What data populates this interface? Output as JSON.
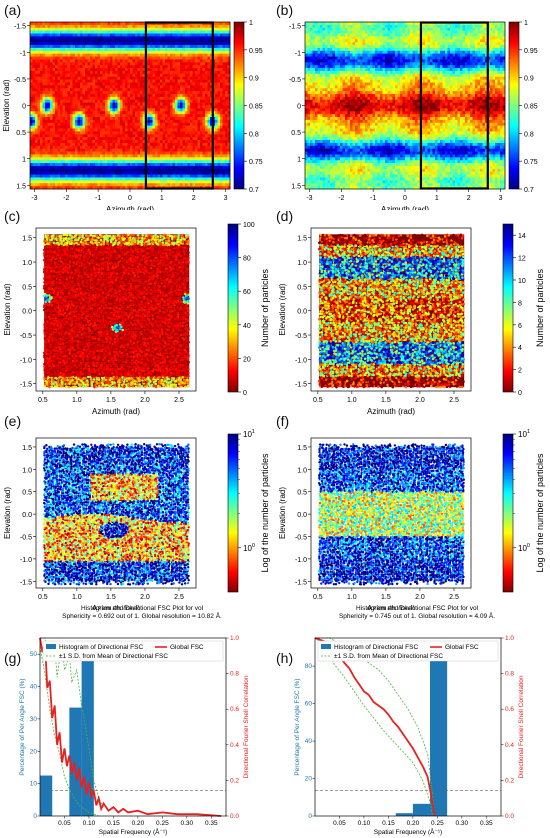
{
  "figure_labels": [
    "(a)",
    "(b)",
    "(c)",
    "(d)",
    "(e)",
    "(f)",
    "(g)",
    "(h)"
  ],
  "colors": {
    "jet": [
      "#00007f",
      "#0000ff",
      "#007fff",
      "#00ffff",
      "#7fff7f",
      "#ffff00",
      "#ff7f00",
      "#ff0000",
      "#7f0000"
    ],
    "jet_r": [
      "#7f0000",
      "#ff0000",
      "#ff7f00",
      "#ffff00",
      "#7fff7f",
      "#00ffff",
      "#007fff",
      "#0000ff",
      "#00007f"
    ],
    "hist_bar": "#1f77b4",
    "global_fsc": "#e8211f",
    "sd_line": "#49b33a",
    "frame": "#000000"
  },
  "chart_data": [
    {
      "id": "a",
      "type": "heatmap",
      "xlabel": "Azimuth (rad)",
      "ylabel": "Elevation (rad)",
      "xlim": [
        -3.14,
        3.14
      ],
      "ylim": [
        -1.57,
        1.57
      ],
      "y_inverted": true,
      "xticks": [
        "-3",
        "-2",
        "-1",
        "0",
        "1",
        "2",
        "3"
      ],
      "yticks": [
        "-1.5",
        "-1",
        "-0.5",
        "0",
        "0.5",
        "1",
        "1.5"
      ],
      "colorbar": {
        "range": [
          0.7,
          1.0
        ],
        "ticks": [
          "0.7",
          "0.75",
          "0.8",
          "0.85",
          "0.9",
          "0.95",
          "1"
        ],
        "colormap": "jet"
      },
      "highlight_box": {
        "x": [
          0.5,
          2.6
        ],
        "y": [
          -1.57,
          1.57
        ]
      }
    },
    {
      "id": "b",
      "type": "heatmap",
      "xlabel": "Azimuth (rad)",
      "ylabel": "",
      "xlim": [
        -3.14,
        3.14
      ],
      "ylim": [
        -1.57,
        1.57
      ],
      "y_inverted": true,
      "xticks": [
        "-3",
        "-2",
        "-1",
        "0",
        "1",
        "2",
        "3"
      ],
      "yticks": [
        "-1.5",
        "-1",
        "-0.5",
        "0",
        "0.5",
        "1",
        "1.5"
      ],
      "colorbar": {
        "range": [
          0.7,
          1.0
        ],
        "ticks": [
          "0.7",
          "0.75",
          "0.8",
          "0.85",
          "0.9",
          "0.95",
          "1"
        ],
        "colormap": "jet"
      },
      "highlight_box": {
        "x": [
          0.5,
          2.6
        ],
        "y": [
          -1.57,
          1.57
        ]
      }
    },
    {
      "id": "c",
      "type": "scatter",
      "xlabel": "Azimuth (rad)",
      "ylabel": "Elevation (rad)",
      "xlim": [
        0.4,
        2.75
      ],
      "ylim": [
        -1.65,
        1.7
      ],
      "xticks": [
        "0.5",
        "1.0",
        "1.5",
        "2.0",
        "2.5"
      ],
      "yticks": [
        "-1.5",
        "-1.0",
        "-0.5",
        "0.0",
        "0.5",
        "1.0",
        "1.5"
      ],
      "colorbar": {
        "range": [
          0,
          100
        ],
        "ticks": [
          "0",
          "20",
          "40",
          "60",
          "80",
          "100"
        ],
        "label": "Number of particles",
        "colormap": "jet_r"
      }
    },
    {
      "id": "d",
      "type": "scatter",
      "xlabel": "Azimuth (rad)",
      "ylabel": "Elevation (rad)",
      "xlim": [
        0.4,
        2.75
      ],
      "ylim": [
        -1.65,
        1.7
      ],
      "xticks": [
        "0.5",
        "1.0",
        "1.5",
        "2.0",
        "2.5"
      ],
      "yticks": [
        "-1.5",
        "-1.0",
        "-0.5",
        "0.0",
        "0.5",
        "1.0",
        "1.5"
      ],
      "colorbar": {
        "range": [
          0,
          15
        ],
        "ticks": [
          "0",
          "2",
          "4",
          "6",
          "8",
          "10",
          "12",
          "14"
        ],
        "label": "Number of particles",
        "colormap": "jet_r"
      }
    },
    {
      "id": "e",
      "type": "scatter",
      "xlabel": "Azimuth (rad)",
      "ylabel": "Elevation (rad)",
      "xlim": [
        0.4,
        2.75
      ],
      "ylim": [
        -1.65,
        1.7
      ],
      "xticks": [
        "0.5",
        "1.0",
        "1.5",
        "2.0",
        "2.5"
      ],
      "yticks": [
        "-1.5",
        "-1.0",
        "-0.5",
        "0.0",
        "0.5",
        "1.0",
        "1.5"
      ],
      "colorbar": {
        "scale": "log",
        "ticks": [
          "10",
          "10"
        ],
        "tick_exponents": [
          "0",
          "1"
        ],
        "label": "Log of the number of particles",
        "colormap": "jet_r"
      }
    },
    {
      "id": "f",
      "type": "scatter",
      "xlabel": "Azimuth (rad)",
      "ylabel": "Elevation (rad)",
      "xlim": [
        0.4,
        2.75
      ],
      "ylim": [
        -1.65,
        1.7
      ],
      "xticks": [
        "0.5",
        "1.0",
        "1.5",
        "2.0",
        "2.5"
      ],
      "yticks": [
        "-1.5",
        "-1.0",
        "-0.5",
        "0.0",
        "0.5",
        "1.0",
        "1.5"
      ],
      "colorbar": {
        "scale": "log",
        "ticks": [
          "10",
          "10"
        ],
        "tick_exponents": [
          "0",
          "1"
        ],
        "label": "Log of the number of particles",
        "colormap": "jet_r"
      }
    },
    {
      "id": "g",
      "type": "bar",
      "title": "Histogram and Directional FSC Plot for vol",
      "subtitle": "Sphericity = 0.692 out of 1. Global resolution = 10.82 Å.",
      "xlabel": "Spatial Frequency (Å⁻¹)",
      "ylabel": "Percentage of Per Angle FSC (%)",
      "y2label": "Directional Fourier Shell Correlation",
      "xlim": [
        0,
        0.38
      ],
      "ylim": [
        0,
        55
      ],
      "y2lim": [
        0,
        1.0
      ],
      "xticks": [
        "0.05",
        "0.10",
        "0.15",
        "0.20",
        "0.25",
        "0.30",
        "0.35"
      ],
      "yticks": [
        "0",
        "10",
        "20",
        "30",
        "40",
        "50"
      ],
      "y2ticks": [
        "0.0",
        "0.2",
        "0.4",
        "0.6",
        "0.8",
        "1.0"
      ],
      "legend": [
        "Histogram of Directional FSC",
        "±1 S.D. from Mean of Directional FSC",
        "Global FSC"
      ],
      "bars": [
        {
          "x": [
            0,
            0.025
          ],
          "value": 12.5
        },
        {
          "x": [
            0.06,
            0.085
          ],
          "value": 33.5
        },
        {
          "x": [
            0.085,
            0.11
          ],
          "value": 53.5
        }
      ],
      "dashed_threshold": 0.143,
      "global_fsc": [
        [
          0.0,
          1.0
        ],
        [
          0.005,
          0.92
        ],
        [
          0.01,
          0.98
        ],
        [
          0.015,
          0.72
        ],
        [
          0.02,
          0.76
        ],
        [
          0.025,
          0.55
        ],
        [
          0.03,
          0.62
        ],
        [
          0.035,
          0.4
        ],
        [
          0.04,
          0.47
        ],
        [
          0.045,
          0.3
        ],
        [
          0.05,
          0.38
        ],
        [
          0.055,
          0.28
        ],
        [
          0.06,
          0.34
        ],
        [
          0.065,
          0.24
        ],
        [
          0.07,
          0.3
        ],
        [
          0.075,
          0.2
        ],
        [
          0.08,
          0.27
        ],
        [
          0.085,
          0.16
        ],
        [
          0.09,
          0.22
        ],
        [
          0.095,
          0.12
        ],
        [
          0.1,
          0.19
        ],
        [
          0.105,
          0.11
        ],
        [
          0.11,
          0.14
        ],
        [
          0.115,
          0.06
        ],
        [
          0.12,
          0.1
        ],
        [
          0.125,
          0.04
        ],
        [
          0.13,
          0.07
        ],
        [
          0.14,
          0.03
        ],
        [
          0.15,
          0.05
        ],
        [
          0.16,
          0.02
        ],
        [
          0.17,
          0.04
        ],
        [
          0.18,
          0.02
        ],
        [
          0.2,
          0.03
        ],
        [
          0.22,
          0.01
        ],
        [
          0.25,
          0.02
        ],
        [
          0.28,
          0.01
        ],
        [
          0.32,
          0.01
        ],
        [
          0.37,
          0.0
        ]
      ],
      "sd_upper": [
        [
          0.0,
          1.0
        ],
        [
          0.01,
          1.0
        ],
        [
          0.02,
          0.9
        ],
        [
          0.03,
          0.95
        ],
        [
          0.035,
          0.78
        ],
        [
          0.045,
          0.98
        ],
        [
          0.05,
          0.82
        ],
        [
          0.06,
          0.9
        ],
        [
          0.065,
          0.75
        ],
        [
          0.075,
          0.82
        ],
        [
          0.085,
          0.62
        ],
        [
          0.09,
          0.55
        ],
        [
          0.1,
          0.38
        ],
        [
          0.11,
          0.2
        ],
        [
          0.12,
          0.1
        ],
        [
          0.13,
          0.05
        ]
      ],
      "sd_lower": [
        [
          0.0,
          0.95
        ],
        [
          0.01,
          0.8
        ],
        [
          0.02,
          0.6
        ],
        [
          0.03,
          0.45
        ],
        [
          0.04,
          0.35
        ],
        [
          0.05,
          0.22
        ],
        [
          0.06,
          0.15
        ],
        [
          0.07,
          0.1
        ],
        [
          0.08,
          0.06
        ],
        [
          0.09,
          0.04
        ],
        [
          0.1,
          0.02
        ],
        [
          0.11,
          0.01
        ],
        [
          0.12,
          0.0
        ]
      ]
    },
    {
      "id": "h",
      "type": "bar",
      "title": "Histogram and Directional FSC Plot for vol",
      "subtitle": "Sphericity = 0.745 out of 1. Global resolution = 4.09 Å.",
      "xlabel": "Spatial Frequency (Å⁻¹)",
      "ylabel": "Percentage of Per Angle FSC (%)",
      "y2label": "Directional Fourier Shell Correlation",
      "xlim": [
        0,
        0.38
      ],
      "ylim": [
        0,
        95
      ],
      "y2lim": [
        0,
        1.0
      ],
      "xticks": [
        "0.05",
        "0.10",
        "0.15",
        "0.20",
        "0.25",
        "0.30",
        "0.35"
      ],
      "yticks": [
        "0",
        "20",
        "40",
        "60",
        "80"
      ],
      "y2ticks": [
        "0.0",
        "0.2",
        "0.4",
        "0.6",
        "0.8",
        "1.0"
      ],
      "legend": [
        "Histogram of Directional FSC",
        "±1 S.D. from Mean of Directional FSC",
        "Global FSC"
      ],
      "bars": [
        {
          "x": [
            0.165,
            0.2
          ],
          "value": 1.5
        },
        {
          "x": [
            0.2,
            0.235
          ],
          "value": 6.5
        },
        {
          "x": [
            0.235,
            0.27
          ],
          "value": 91.5
        }
      ],
      "dashed_threshold": 0.143,
      "global_fsc": [
        [
          0.0,
          1.0
        ],
        [
          0.02,
          0.98
        ],
        [
          0.04,
          0.95
        ],
        [
          0.05,
          0.9
        ],
        [
          0.06,
          0.86
        ],
        [
          0.07,
          0.83
        ],
        [
          0.08,
          0.78
        ],
        [
          0.09,
          0.74
        ],
        [
          0.1,
          0.7
        ],
        [
          0.11,
          0.68
        ],
        [
          0.12,
          0.64
        ],
        [
          0.13,
          0.62
        ],
        [
          0.14,
          0.6
        ],
        [
          0.15,
          0.57
        ],
        [
          0.16,
          0.53
        ],
        [
          0.17,
          0.5
        ],
        [
          0.18,
          0.46
        ],
        [
          0.19,
          0.42
        ],
        [
          0.2,
          0.38
        ],
        [
          0.21,
          0.33
        ],
        [
          0.22,
          0.28
        ],
        [
          0.23,
          0.22
        ],
        [
          0.235,
          0.15
        ],
        [
          0.24,
          0.07
        ],
        [
          0.245,
          0.0
        ]
      ],
      "sd_upper": [
        [
          0.0,
          1.0
        ],
        [
          0.03,
          1.0
        ],
        [
          0.05,
          0.97
        ],
        [
          0.07,
          0.93
        ],
        [
          0.09,
          0.9
        ],
        [
          0.11,
          0.86
        ],
        [
          0.13,
          0.82
        ],
        [
          0.15,
          0.76
        ],
        [
          0.17,
          0.68
        ],
        [
          0.19,
          0.6
        ],
        [
          0.21,
          0.5
        ],
        [
          0.23,
          0.35
        ],
        [
          0.24,
          0.12
        ],
        [
          0.245,
          0.0
        ]
      ],
      "sd_lower": [
        [
          0.0,
          1.0
        ],
        [
          0.02,
          0.95
        ],
        [
          0.04,
          0.85
        ],
        [
          0.06,
          0.78
        ],
        [
          0.08,
          0.7
        ],
        [
          0.1,
          0.62
        ],
        [
          0.12,
          0.55
        ],
        [
          0.14,
          0.48
        ],
        [
          0.16,
          0.42
        ],
        [
          0.18,
          0.36
        ],
        [
          0.2,
          0.3
        ],
        [
          0.22,
          0.2
        ],
        [
          0.235,
          0.08
        ],
        [
          0.24,
          0.0
        ]
      ]
    }
  ]
}
